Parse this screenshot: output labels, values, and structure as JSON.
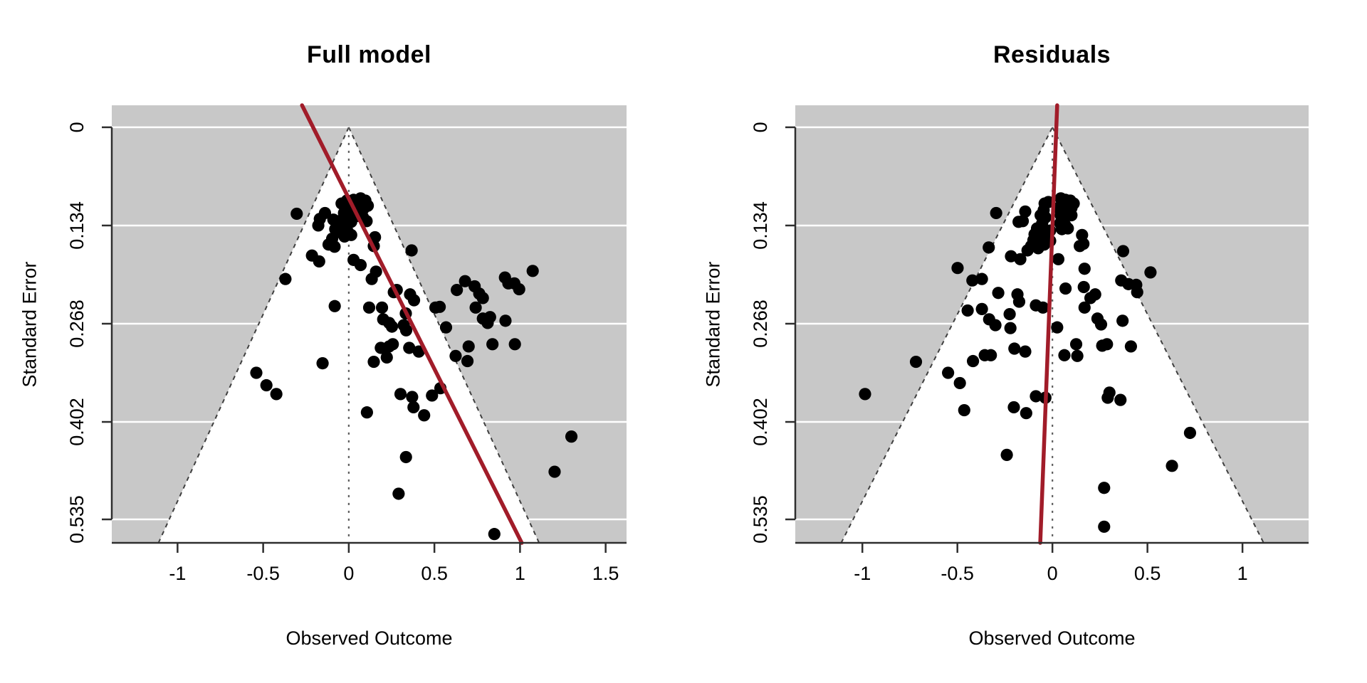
{
  "figure": {
    "background": "#ffffff",
    "colors": {
      "shade": "#c8c8c8",
      "funnel_fill": "#ffffff",
      "grid_line": "#ffffff",
      "funnel_edge": "#3f3f3f",
      "reference_line": "#5c5c5c",
      "point": "#000000",
      "regression_line": "#a11c29",
      "axis": "#2e2e2e",
      "text": "#000000"
    }
  },
  "chart_data": [
    {
      "type": "scatter",
      "variant": "funnel-plot",
      "title": "Full model",
      "xlabel": "Observed Outcome",
      "ylabel": "Standard Error",
      "x_range": [
        -1.384,
        1.622
      ],
      "se_range": [
        -0.03,
        0.567
      ],
      "x_ticks": [
        -1,
        -0.5,
        0,
        0.5,
        1,
        1.5
      ],
      "x_tick_labels": [
        "-1",
        "-0.5",
        "0",
        "0.5",
        "1",
        "1.5"
      ],
      "y_ticks": [
        0,
        0.134,
        0.268,
        0.402,
        0.535
      ],
      "y_tick_labels": [
        "0",
        "0.134",
        "0.268",
        "0.402",
        "0.535"
      ],
      "grid": true,
      "legend": "none",
      "funnel": {
        "center_x": 0,
        "ci_z": 1.96,
        "reference_line_x": 0
      },
      "regression_line": {
        "top_point": [
          -0.273,
          -0.03
        ],
        "bottom_point": [
          1.01,
          0.567
        ]
      },
      "points": [
        [
          -0.304,
          0.118
        ],
        [
          -0.139,
          0.117
        ],
        [
          -0.169,
          0.125
        ],
        [
          -0.178,
          0.134
        ],
        [
          -0.09,
          0.126
        ],
        [
          -0.042,
          0.104
        ],
        [
          -0.011,
          0.1
        ],
        [
          0.028,
          0.099
        ],
        [
          0.069,
          0.097
        ],
        [
          0.097,
          0.1
        ],
        [
          0.111,
          0.107
        ],
        [
          0.083,
          0.112
        ],
        [
          0.042,
          0.11
        ],
        [
          0.0,
          0.112
        ],
        [
          -0.028,
          0.117
        ],
        [
          0.014,
          0.12
        ],
        [
          0.049,
          0.121
        ],
        [
          0.083,
          0.123
        ],
        [
          0.104,
          0.128
        ],
        [
          0.014,
          0.129
        ],
        [
          -0.021,
          0.131
        ],
        [
          -0.055,
          0.128
        ],
        [
          -0.079,
          0.139
        ],
        [
          -0.042,
          0.144
        ],
        [
          -0.007,
          0.142
        ],
        [
          -0.025,
          0.149
        ],
        [
          0.014,
          0.147
        ],
        [
          -0.097,
          0.152
        ],
        [
          -0.118,
          0.16
        ],
        [
          -0.083,
          0.163
        ],
        [
          0.153,
          0.15
        ],
        [
          0.146,
          0.162
        ],
        [
          -0.215,
          0.175
        ],
        [
          -0.173,
          0.183
        ],
        [
          0.028,
          0.181
        ],
        [
          0.069,
          0.188
        ],
        [
          0.367,
          0.168
        ],
        [
          -0.37,
          0.207
        ],
        [
          0.134,
          0.207
        ],
        [
          0.159,
          0.197
        ],
        [
          0.263,
          0.225
        ],
        [
          0.28,
          0.222
        ],
        [
          0.358,
          0.228
        ],
        [
          0.381,
          0.236
        ],
        [
          0.119,
          0.246
        ],
        [
          0.194,
          0.246
        ],
        [
          -0.082,
          0.244
        ],
        [
          0.201,
          0.262
        ],
        [
          0.236,
          0.267
        ],
        [
          0.252,
          0.272
        ],
        [
          0.333,
          0.254
        ],
        [
          0.321,
          0.27
        ],
        [
          0.335,
          0.277
        ],
        [
          0.506,
          0.246
        ],
        [
          0.531,
          0.245
        ],
        [
          0.568,
          0.273
        ],
        [
          0.187,
          0.301
        ],
        [
          0.236,
          0.299
        ],
        [
          0.257,
          0.296
        ],
        [
          0.222,
          0.314
        ],
        [
          0.146,
          0.32
        ],
        [
          0.353,
          0.301
        ],
        [
          0.409,
          0.306
        ],
        [
          -0.153,
          0.322
        ],
        [
          -0.54,
          0.335
        ],
        [
          -0.481,
          0.352
        ],
        [
          -0.423,
          0.364
        ],
        [
          0.631,
          0.222
        ],
        [
          0.679,
          0.21
        ],
        [
          0.735,
          0.217
        ],
        [
          0.762,
          0.227
        ],
        [
          0.783,
          0.233
        ],
        [
          0.741,
          0.246
        ],
        [
          0.783,
          0.261
        ],
        [
          0.811,
          0.267
        ],
        [
          0.825,
          0.259
        ],
        [
          0.912,
          0.205
        ],
        [
          0.932,
          0.213
        ],
        [
          0.967,
          0.213
        ],
        [
          0.995,
          0.221
        ],
        [
          1.074,
          0.196
        ],
        [
          0.915,
          0.264
        ],
        [
          0.7,
          0.299
        ],
        [
          0.839,
          0.296
        ],
        [
          0.97,
          0.296
        ],
        [
          0.624,
          0.312
        ],
        [
          0.693,
          0.319
        ],
        [
          0.106,
          0.389
        ],
        [
          0.302,
          0.364
        ],
        [
          0.37,
          0.368
        ],
        [
          0.378,
          0.382
        ],
        [
          0.44,
          0.393
        ],
        [
          0.486,
          0.366
        ],
        [
          0.535,
          0.356
        ],
        [
          0.334,
          0.45
        ],
        [
          0.291,
          0.5
        ],
        [
          0.85,
          0.555
        ],
        [
          1.3,
          0.422
        ],
        [
          1.202,
          0.47
        ]
      ]
    },
    {
      "type": "scatter",
      "variant": "funnel-plot",
      "title": "Residuals",
      "xlabel": "Observed Outcome",
      "ylabel": "Standard Error",
      "x_range": [
        -1.353,
        1.348
      ],
      "se_range": [
        -0.03,
        0.567
      ],
      "x_ticks": [
        -1,
        -0.5,
        0,
        0.5,
        1
      ],
      "x_tick_labels": [
        "-1",
        "-0.5",
        "0",
        "0.5",
        "1"
      ],
      "y_ticks": [
        0,
        0.134,
        0.268,
        0.402,
        0.535
      ],
      "y_tick_labels": [
        "0",
        "0.134",
        "0.268",
        "0.402",
        "0.535"
      ],
      "grid": true,
      "legend": "none",
      "funnel": {
        "center_x": 0,
        "ci_z": 1.96,
        "reference_line_x": 0
      },
      "regression_line": {
        "top_point": [
          0.025,
          -0.03
        ],
        "bottom_point": [
          -0.064,
          0.567
        ]
      },
      "points": [
        [
          -0.296,
          0.117
        ],
        [
          -0.143,
          0.115
        ],
        [
          -0.156,
          0.128
        ],
        [
          -0.178,
          0.129
        ],
        [
          -0.041,
          0.104
        ],
        [
          -0.021,
          0.102
        ],
        [
          -0.046,
          0.113
        ],
        [
          -0.062,
          0.12
        ],
        [
          -0.037,
          0.123
        ],
        [
          -0.054,
          0.131
        ],
        [
          -0.081,
          0.138
        ],
        [
          -0.094,
          0.146
        ],
        [
          -0.069,
          0.15
        ],
        [
          -0.037,
          0.146
        ],
        [
          -0.012,
          0.141
        ],
        [
          0.044,
          0.097
        ],
        [
          0.069,
          0.099
        ],
        [
          0.094,
          0.1
        ],
        [
          0.112,
          0.104
        ],
        [
          0.1,
          0.11
        ],
        [
          0.081,
          0.113
        ],
        [
          0.056,
          0.112
        ],
        [
          0.031,
          0.11
        ],
        [
          0.044,
          0.12
        ],
        [
          0.069,
          0.121
        ],
        [
          0.1,
          0.12
        ],
        [
          0.041,
          0.131
        ],
        [
          0.066,
          0.133
        ],
        [
          0.05,
          0.139
        ],
        [
          0.081,
          0.138
        ],
        [
          -0.012,
          0.155
        ],
        [
          -0.043,
          0.16
        ],
        [
          -0.075,
          0.165
        ],
        [
          -0.112,
          0.162
        ],
        [
          -0.131,
          0.168
        ],
        [
          -0.1,
          0.154
        ],
        [
          0.156,
          0.147
        ],
        [
          0.163,
          0.159
        ],
        [
          0.144,
          0.162
        ],
        [
          -0.218,
          0.176
        ],
        [
          -0.169,
          0.18
        ],
        [
          0.031,
          0.18
        ],
        [
          0.169,
          0.193
        ],
        [
          -0.335,
          0.164
        ],
        [
          0.372,
          0.169
        ],
        [
          -0.499,
          0.192
        ],
        [
          -0.421,
          0.209
        ],
        [
          -0.371,
          0.207
        ],
        [
          -0.285,
          0.226
        ],
        [
          -0.184,
          0.228
        ],
        [
          -0.175,
          0.238
        ],
        [
          -0.446,
          0.25
        ],
        [
          -0.371,
          0.248
        ],
        [
          -0.333,
          0.262
        ],
        [
          -0.3,
          0.27
        ],
        [
          -0.225,
          0.255
        ],
        [
          -0.221,
          0.274
        ],
        [
          -0.087,
          0.243
        ],
        [
          -0.05,
          0.246
        ],
        [
          -0.2,
          0.302
        ],
        [
          -0.143,
          0.306
        ],
        [
          -0.718,
          0.32
        ],
        [
          -0.549,
          0.335
        ],
        [
          -0.487,
          0.349
        ],
        [
          -0.418,
          0.319
        ],
        [
          -0.356,
          0.311
        ],
        [
          -0.324,
          0.311
        ],
        [
          0.069,
          0.22
        ],
        [
          0.165,
          0.218
        ],
        [
          0.025,
          0.273
        ],
        [
          0.063,
          0.311
        ],
        [
          0.125,
          0.296
        ],
        [
          0.131,
          0.312
        ],
        [
          0.225,
          0.228
        ],
        [
          0.2,
          0.233
        ],
        [
          0.169,
          0.246
        ],
        [
          0.516,
          0.198
        ],
        [
          0.362,
          0.209
        ],
        [
          0.4,
          0.214
        ],
        [
          0.441,
          0.215
        ],
        [
          0.446,
          0.225
        ],
        [
          0.369,
          0.264
        ],
        [
          0.237,
          0.261
        ],
        [
          0.256,
          0.269
        ],
        [
          0.262,
          0.298
        ],
        [
          0.287,
          0.296
        ],
        [
          0.413,
          0.299
        ],
        [
          -0.986,
          0.364
        ],
        [
          -0.464,
          0.386
        ],
        [
          -0.203,
          0.382
        ],
        [
          -0.138,
          0.39
        ],
        [
          -0.087,
          0.367
        ],
        [
          -0.037,
          0.369
        ],
        [
          -0.24,
          0.447
        ],
        [
          0.291,
          0.369
        ],
        [
          0.3,
          0.362
        ],
        [
          0.358,
          0.372
        ],
        [
          0.724,
          0.417
        ],
        [
          0.629,
          0.462
        ],
        [
          0.272,
          0.492
        ],
        [
          0.272,
          0.545
        ]
      ]
    }
  ]
}
